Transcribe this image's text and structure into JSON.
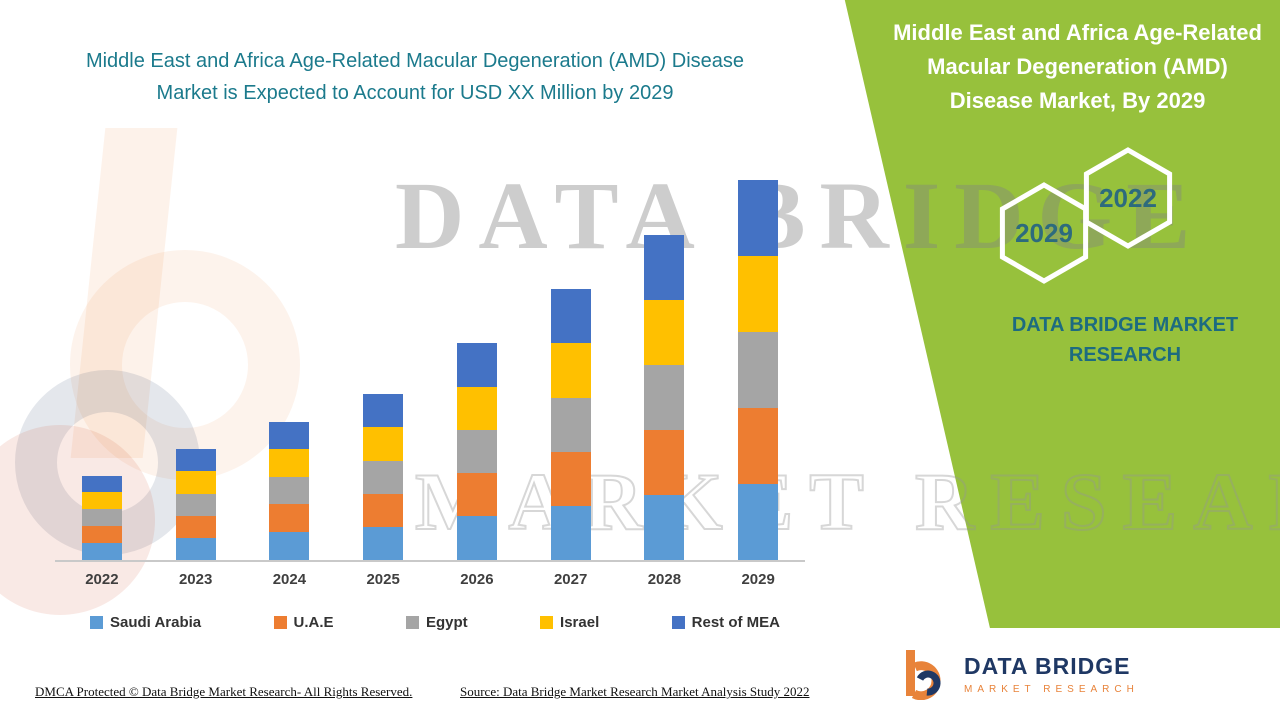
{
  "theme": {
    "green": "#97C13C",
    "teal": "#1B7A8C",
    "teal_dark": "#1D6B80",
    "navy": "#1F3864",
    "orange": "#E8833A",
    "axis_text": "#3F3F3F"
  },
  "page": {
    "left_title": "Middle East and Africa Age-Related Macular Degeneration (AMD) Disease Market is Expected to Account for USD XX Million by 2029",
    "footer_dmca": "DMCA Protected © Data Bridge Market Research- All Rights Reserved.",
    "footer_source": "Source: Data Bridge Market Research Market Analysis Study 2022"
  },
  "side_panel": {
    "title": "Middle East and Africa Age-Related Macular Degeneration (AMD) Disease Market, By 2029",
    "hexagon_years": [
      "2029",
      "2022"
    ],
    "brand_text": "DATA BRIDGE MARKET RESEARCH"
  },
  "watermark": {
    "line1": "DATA BRIDGE",
    "line2": "MARKET RESEARCH"
  },
  "logo": {
    "name": "DATA BRIDGE",
    "subtitle": "MARKET RESEARCH"
  },
  "chart_data": {
    "type": "bar",
    "stacked": true,
    "title": "Middle East and Africa Age-Related Macular Degeneration (AMD) Disease Market, By 2029",
    "xlabel": "",
    "ylabel": "",
    "units": "relative index (actual values masked as USD XX Million)",
    "gridlines": false,
    "legend_position": "bottom",
    "ylim": [
      0,
      400
    ],
    "categories": [
      "2022",
      "2023",
      "2024",
      "2025",
      "2026",
      "2027",
      "2028",
      "2029"
    ],
    "series": [
      {
        "name": "Saudi Arabia",
        "color": "#5B9BD5",
        "values": [
          17,
          22,
          28,
          33,
          44,
          54,
          65,
          76
        ]
      },
      {
        "name": "U.A.E",
        "color": "#ED7D31",
        "values": [
          17,
          22,
          28,
          33,
          43,
          54,
          65,
          76
        ]
      },
      {
        "name": "Egypt",
        "color": "#A5A5A5",
        "values": [
          17,
          22,
          27,
          33,
          43,
          54,
          65,
          76
        ]
      },
      {
        "name": "Israel",
        "color": "#FFC000",
        "values": [
          17,
          23,
          28,
          34,
          43,
          55,
          65,
          76
        ]
      },
      {
        "name": "Rest of MEA",
        "color": "#4472C4",
        "values": [
          16,
          22,
          27,
          33,
          44,
          54,
          65,
          76
        ]
      }
    ]
  }
}
